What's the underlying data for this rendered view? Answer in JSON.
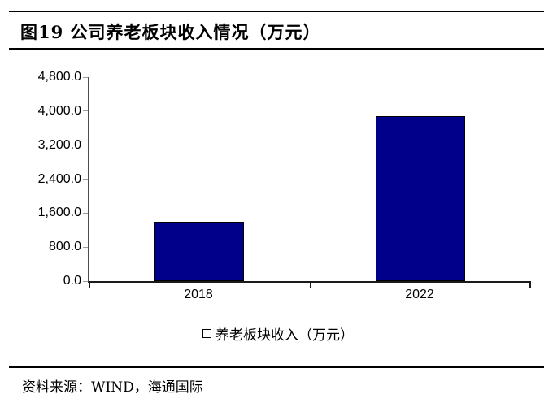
{
  "header": {
    "title": "图19 公司养老板块收入情况（万元）"
  },
  "footer": {
    "source": "资料来源：WIND，海通国际"
  },
  "chart_data": {
    "type": "bar",
    "title": "图19 公司养老板块收入情况（万元）",
    "categories": [
      "2018",
      "2022"
    ],
    "values": [
      1400,
      3890
    ],
    "series": [
      {
        "name": "养老板块收入（万元）",
        "values": [
          1400,
          3890
        ]
      }
    ],
    "legend": [
      "养老板块收入（万元）"
    ],
    "legend_position": "bottom",
    "xlabel": "",
    "ylabel": "",
    "ylim": [
      0,
      4800
    ],
    "ytick_step": 800,
    "ytick_labels": [
      "0.0",
      "800.0",
      "1,600.0",
      "2,400.0",
      "3,200.0",
      "4,000.0",
      "4,800.0"
    ],
    "grid": false,
    "bar_color": "#00008B",
    "bar_border_color": "#000000"
  }
}
